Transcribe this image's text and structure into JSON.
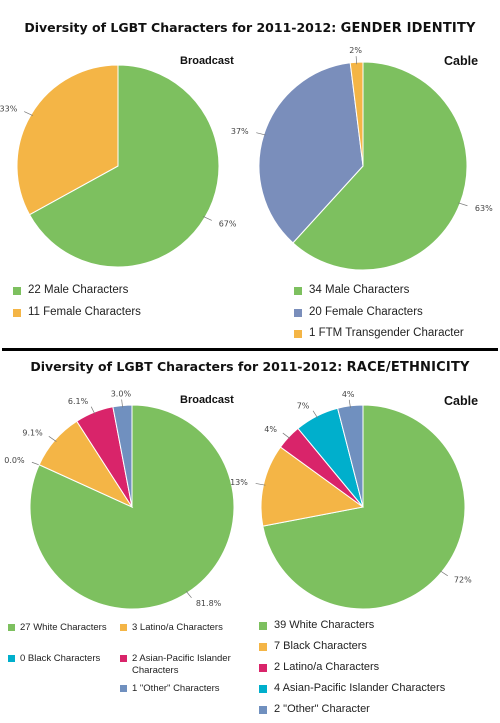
{
  "colors": {
    "green": "#7DC05F",
    "orange": "#F4B546",
    "blue": "#7A8EBB",
    "teal": "#00AFCC",
    "magenta": "#D9246A",
    "slate": "#7090BF"
  },
  "top_title": {
    "prefix": "Diversity of  LGBT Characters  for 2011-2012: ",
    "emphasis": "GENDER  IDENTITY"
  },
  "bottom_title": {
    "prefix": "Diversity of  LGBT Characters  for 2011-2012: ",
    "emphasis": "RACE/ETHNICITY"
  },
  "chart_data": [
    {
      "type": "pie",
      "title": "Broadcast",
      "section": "GENDER IDENTITY",
      "slices": [
        {
          "label": "22 Male Characters",
          "value": 67,
          "value_label": "67%",
          "color": "#7DC05F"
        },
        {
          "label": "11 Female Characters",
          "value": 33,
          "value_label": "33%",
          "color": "#F4B546"
        }
      ]
    },
    {
      "type": "pie",
      "title": "Cable",
      "section": "GENDER IDENTITY",
      "slices": [
        {
          "label": "34 Male Characters",
          "value": 63,
          "value_label": "63%",
          "color": "#7DC05F"
        },
        {
          "label": "20 Female Characters",
          "value": 37,
          "value_label": "37%",
          "color": "#7A8EBB"
        },
        {
          "label": "1 FTM Transgender Character",
          "value": 2,
          "value_label": "2%",
          "color": "#F4B546"
        }
      ]
    },
    {
      "type": "pie",
      "title": "Broadcast",
      "section": "RACE/ETHNICITY",
      "slices": [
        {
          "label": "27 White Characters",
          "value": 81.8,
          "value_label": "81.8%",
          "color": "#7DC05F"
        },
        {
          "label": "0 Black Characters",
          "value": 0.0,
          "value_label": "0.0%",
          "color": "#00AFCC"
        },
        {
          "label": "3 Latino/a Characters",
          "value": 9.1,
          "value_label": "9.1%",
          "color": "#F4B546"
        },
        {
          "label": "2 Asian-Pacific Islander Characters",
          "value": 6.1,
          "value_label": "6.1%",
          "color": "#D9246A"
        },
        {
          "label": "1 \"Other\" Characters",
          "value": 3.0,
          "value_label": "3.0%",
          "color": "#7090BF"
        }
      ]
    },
    {
      "type": "pie",
      "title": "Cable",
      "section": "RACE/ETHNICITY",
      "slices": [
        {
          "label": "39 White Characters",
          "value": 72,
          "value_label": "72%",
          "color": "#7DC05F"
        },
        {
          "label": "7 Black Characters",
          "value": 13,
          "value_label": "13%",
          "color": "#F4B546"
        },
        {
          "label": "2 Latino/a Characters",
          "value": 4,
          "value_label": "4%",
          "color": "#D9246A"
        },
        {
          "label": "4 Asian-Pacific Islander Characters",
          "value": 7,
          "value_label": "7%",
          "color": "#00AFCC"
        },
        {
          "label": "2 \"Other\" Character",
          "value": 4,
          "value_label": "4%",
          "color": "#7090BF"
        }
      ]
    }
  ]
}
